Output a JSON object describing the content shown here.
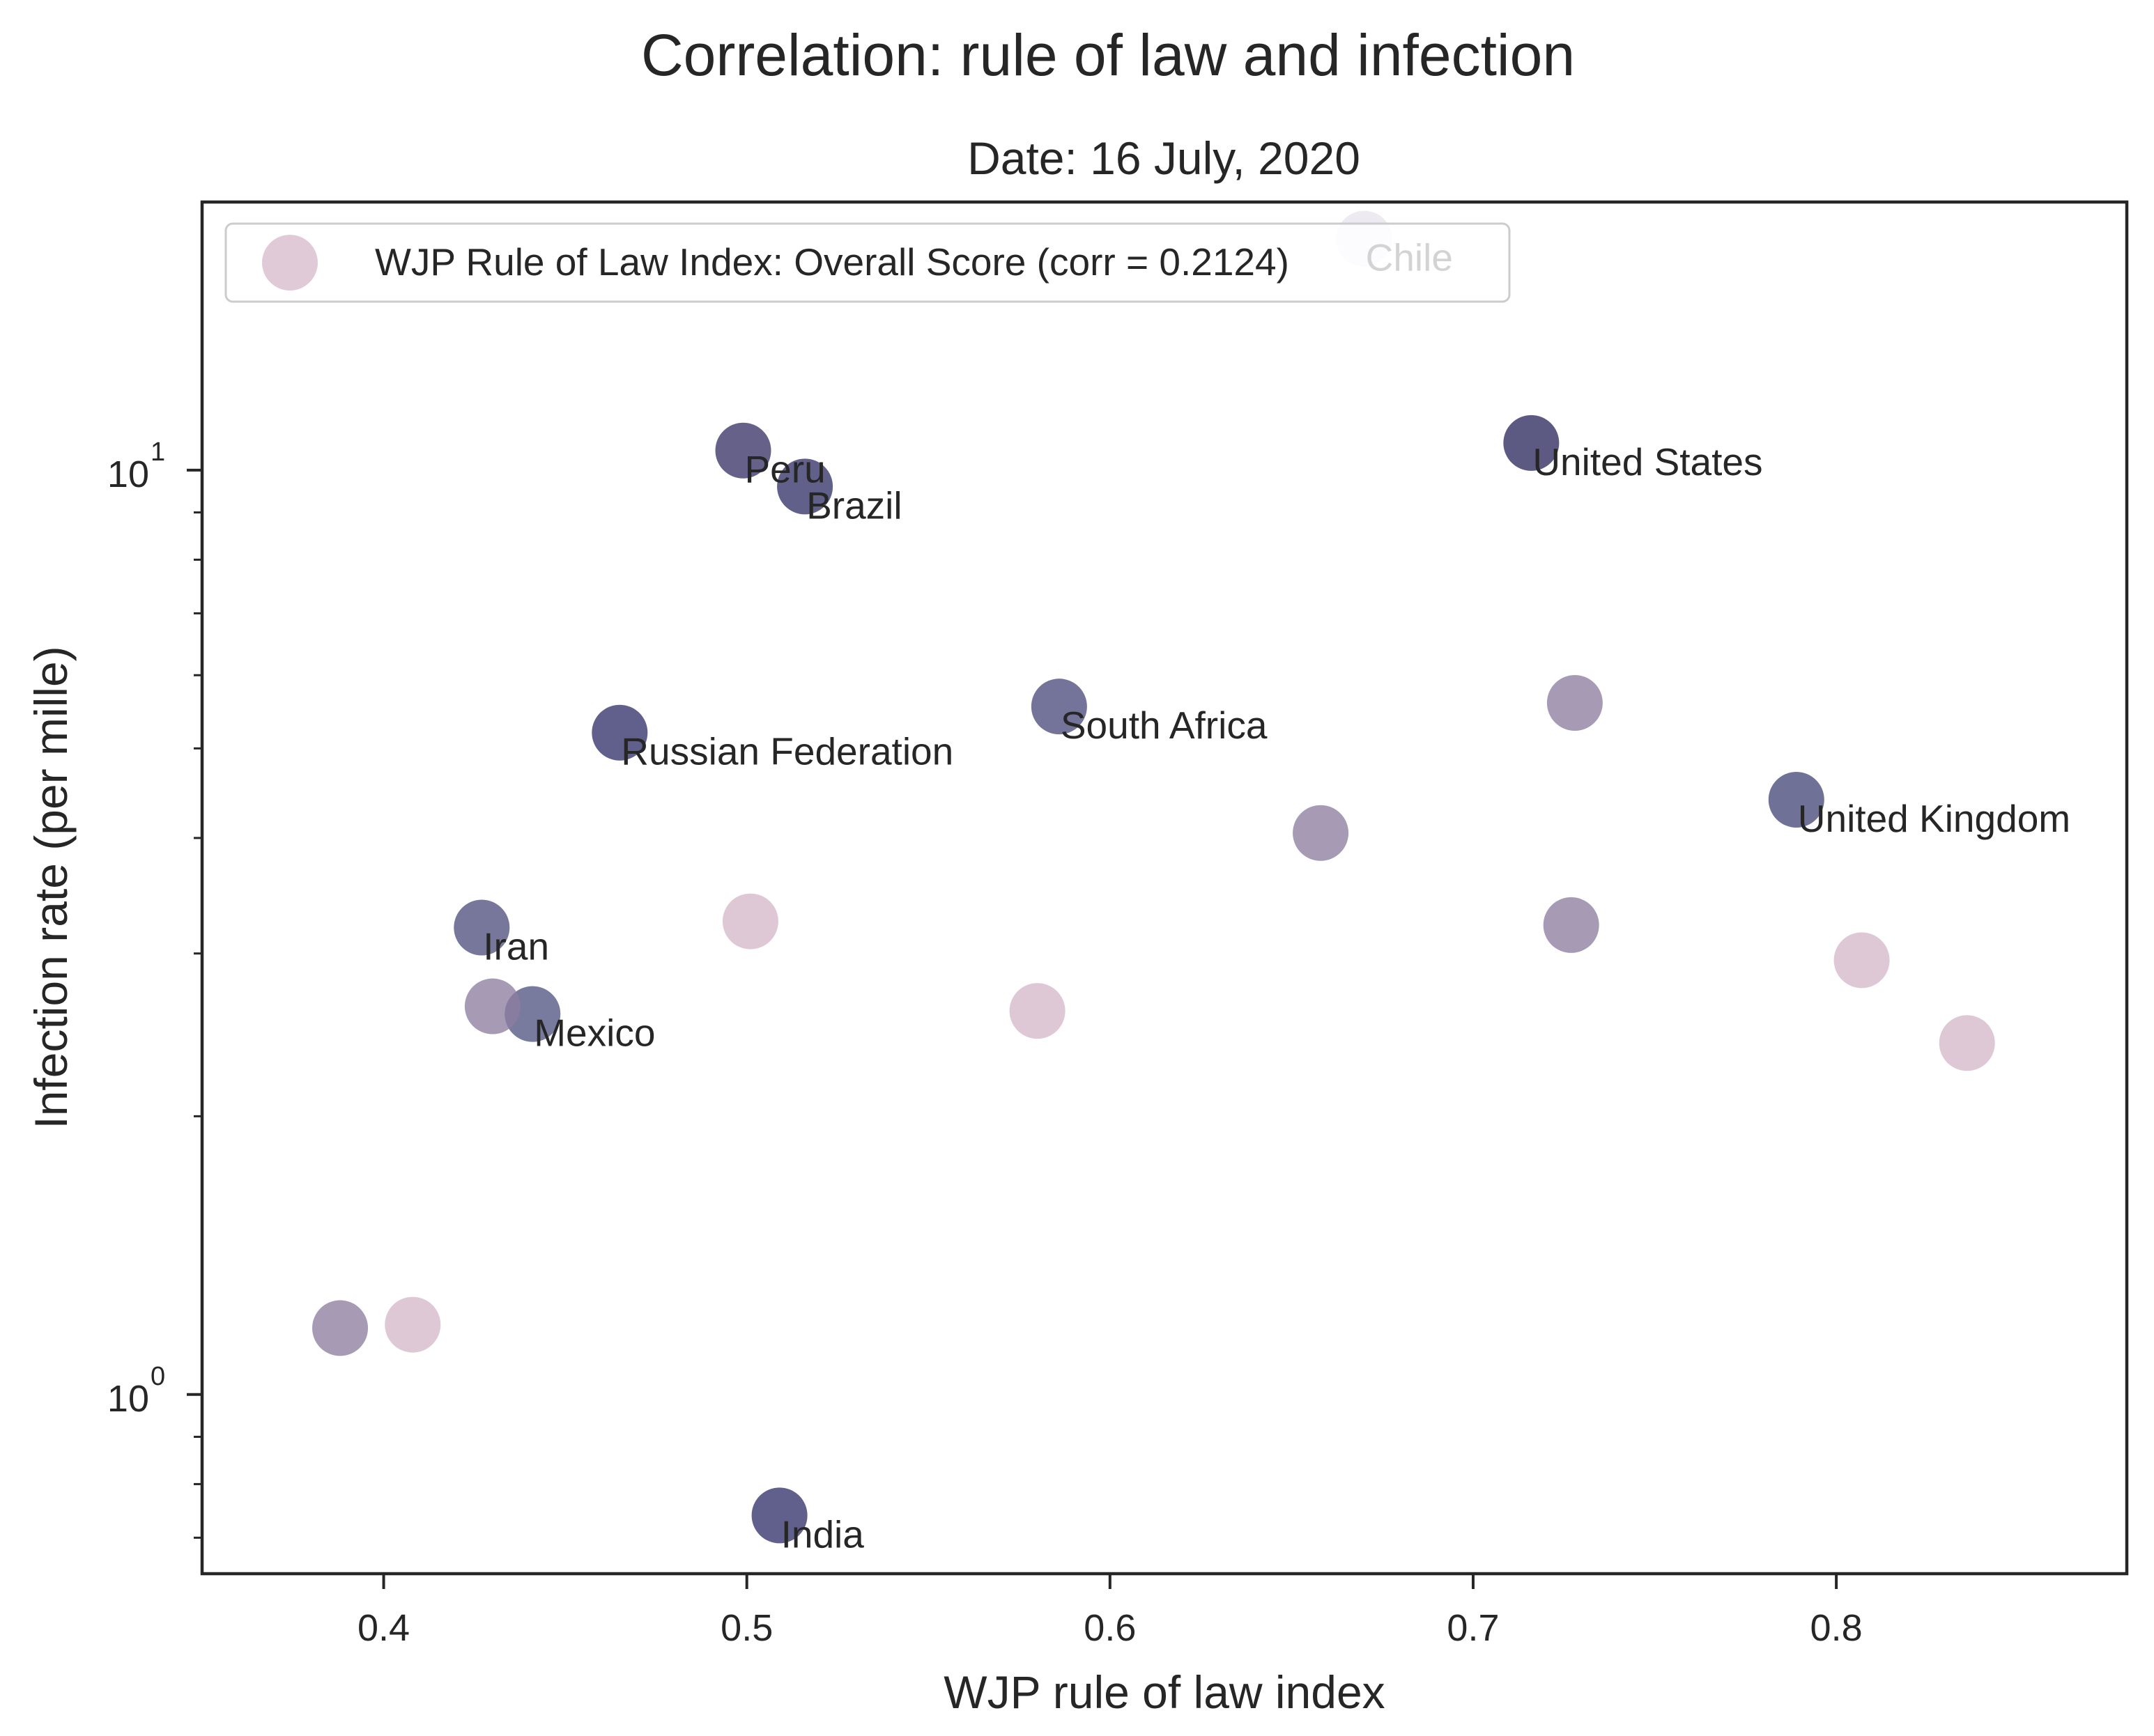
{
  "chart_data": {
    "type": "scatter",
    "suptitle": "Correlation: rule of law and infection",
    "title": "Date: 16 July, 2020",
    "xlabel": "WJP rule of law index",
    "ylabel": "Infection rate (per mille)",
    "xlim": [
      0.35,
      0.88
    ],
    "ylim": [
      0.64,
      19.5
    ],
    "yscale": "log",
    "grid": false,
    "legend_position": "top-left",
    "x_ticks": [
      0.4,
      0.5,
      0.6,
      0.7,
      0.8
    ],
    "x_tick_labels": [
      "0.4",
      "0.5",
      "0.6",
      "0.7",
      "0.8"
    ],
    "y_ticks": [
      {
        "value": 1,
        "base": "10",
        "exp": "0"
      },
      {
        "value": 10,
        "base": "10",
        "exp": "1"
      }
    ],
    "y_minor_ticks": [
      0.7,
      0.8,
      0.9,
      2,
      3,
      4,
      5,
      6,
      7,
      8,
      9
    ],
    "series": [
      {
        "name": "WJP Rule of Law Index: Overall Score (corr = 0.2124)",
        "color": "#d6b8c9",
        "points": [
          {
            "x": 0.67,
            "y": 17.8,
            "label": "Chile",
            "color": "#e8e4ee"
          },
          {
            "x": 0.716,
            "y": 10.7,
            "label": "United States",
            "color": "#2e2b5f"
          },
          {
            "x": 0.499,
            "y": 10.5,
            "label": "Peru",
            "color": "#3a3566"
          },
          {
            "x": 0.516,
            "y": 9.6,
            "label": "Brazil",
            "color": "#35336a"
          },
          {
            "x": 0.586,
            "y": 5.55,
            "label": "South Africa",
            "color": "#4d4c7e"
          },
          {
            "x": 0.465,
            "y": 5.2,
            "label": "Russian Federation",
            "color": "#35326a"
          },
          {
            "x": 0.789,
            "y": 4.4,
            "label": "United Kingdom",
            "color": "#464979"
          },
          {
            "x": 0.427,
            "y": 3.2,
            "label": "Iran",
            "color": "#4f517f"
          },
          {
            "x": 0.441,
            "y": 2.58,
            "label": "Mexico",
            "color": "#525483"
          },
          {
            "x": 0.509,
            "y": 0.74,
            "label": "India",
            "color": "#35326a"
          },
          {
            "x": 0.728,
            "y": 5.6,
            "label": "",
            "color": "#8d7ea0"
          },
          {
            "x": 0.658,
            "y": 4.05,
            "label": "",
            "color": "#8d7ea0"
          },
          {
            "x": 0.727,
            "y": 3.22,
            "label": "",
            "color": "#8d7ea0"
          },
          {
            "x": 0.43,
            "y": 2.63,
            "label": "",
            "color": "#8d7ea0"
          },
          {
            "x": 0.388,
            "y": 1.18,
            "label": "",
            "color": "#8d7ea0"
          },
          {
            "x": 0.501,
            "y": 3.25,
            "label": "",
            "color": "#d6b8c9"
          },
          {
            "x": 0.58,
            "y": 2.6,
            "label": "",
            "color": "#d6b8c9"
          },
          {
            "x": 0.807,
            "y": 2.95,
            "label": "",
            "color": "#d6b8c9"
          },
          {
            "x": 0.836,
            "y": 2.4,
            "label": "",
            "color": "#d6b8c9"
          },
          {
            "x": 0.408,
            "y": 1.19,
            "label": "",
            "color": "#d6b8c9"
          }
        ]
      }
    ]
  }
}
